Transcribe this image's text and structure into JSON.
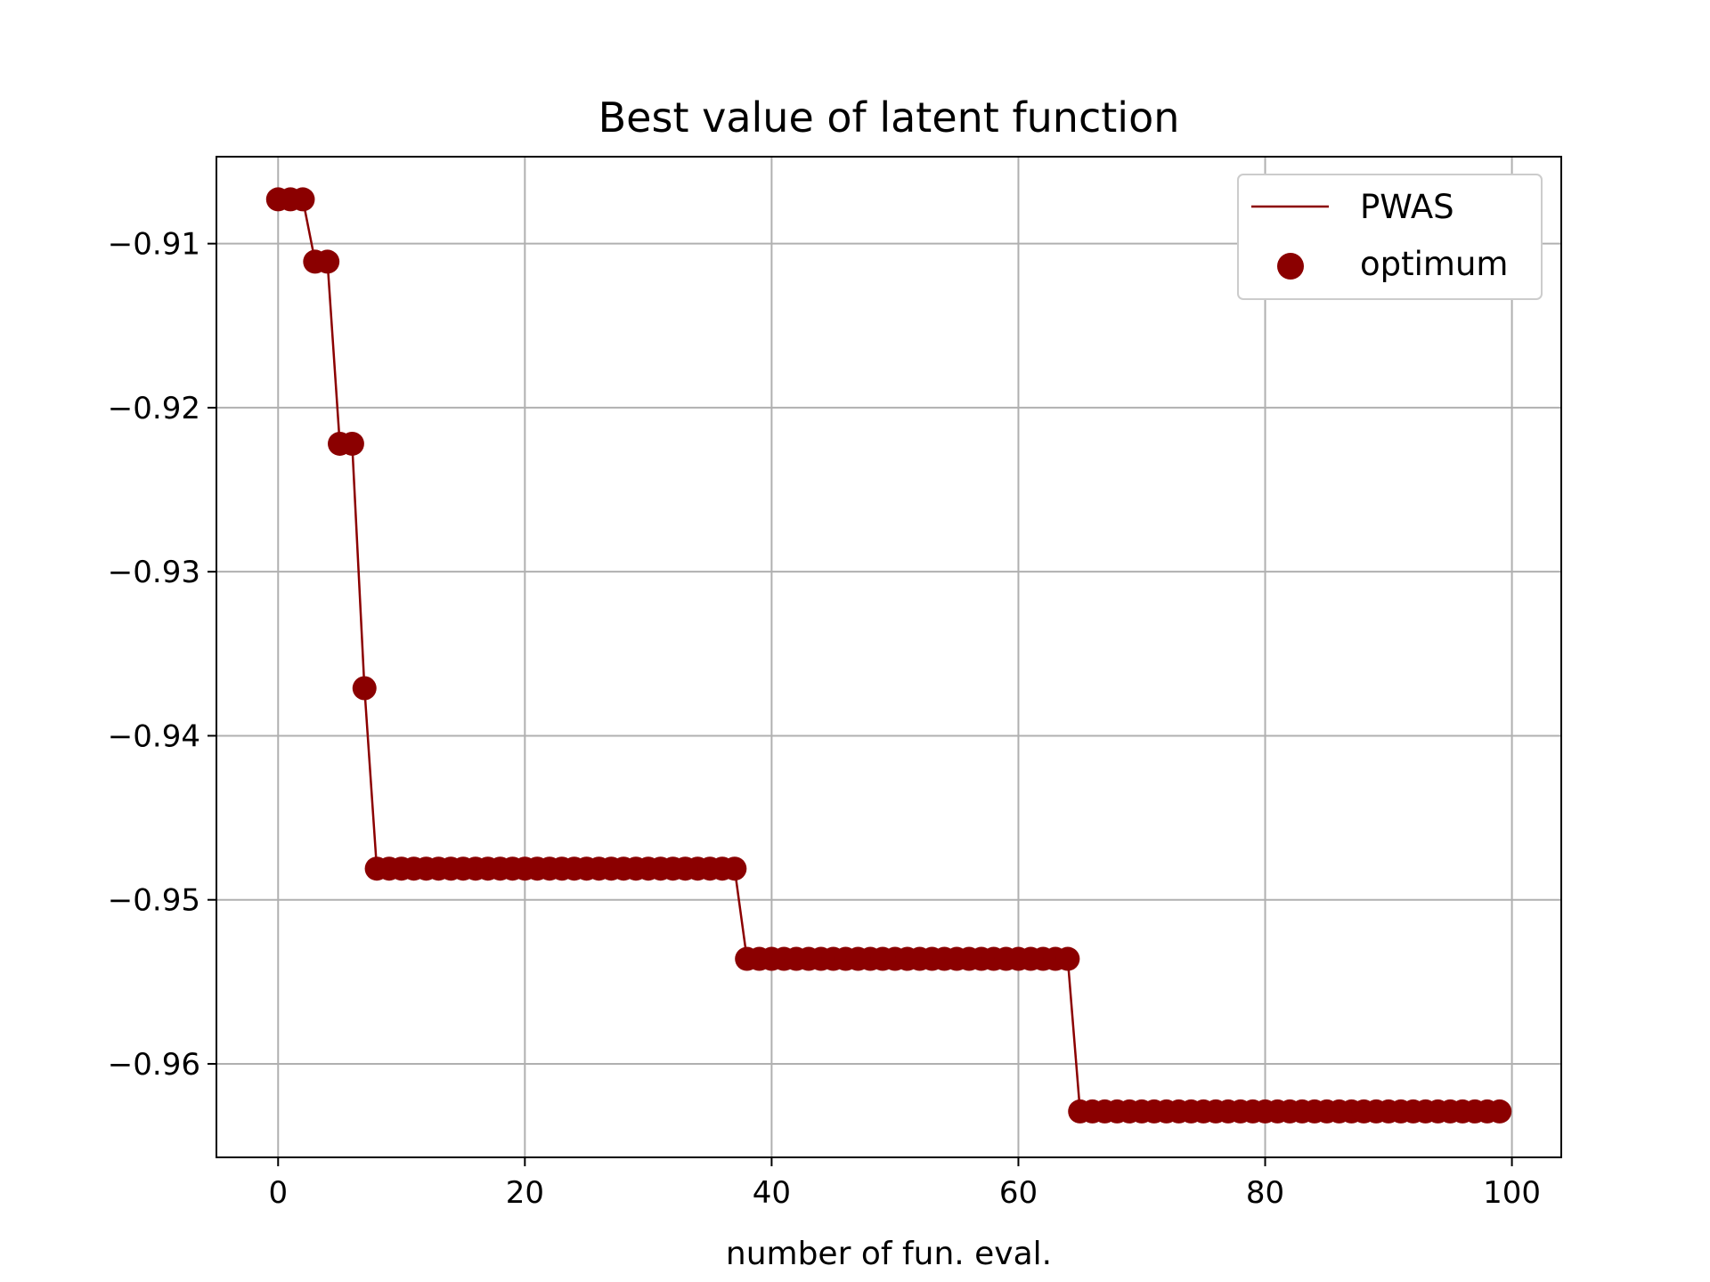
{
  "chart_data": {
    "type": "line",
    "title": "Best value of latent function",
    "xlabel": "number of fun. eval.",
    "ylabel": "",
    "xlim": [
      -5,
      104
    ],
    "ylim": [
      -0.9657,
      -0.9047
    ],
    "xticks": [
      0,
      20,
      40,
      60,
      80,
      100
    ],
    "xtick_labels": [
      "0",
      "20",
      "40",
      "60",
      "80",
      "100"
    ],
    "yticks": [
      -0.91,
      -0.92,
      -0.93,
      -0.94,
      -0.95,
      -0.96
    ],
    "ytick_labels": [
      "−0.91",
      "−0.92",
      "−0.93",
      "−0.94",
      "−0.95",
      "−0.96"
    ],
    "grid": true,
    "legend_position": "upper-right",
    "colors": {
      "series": "#8b0000",
      "grid": "#b0b0b0",
      "axes": "#000000"
    },
    "series": [
      {
        "name": "PWAS",
        "kind": "line"
      },
      {
        "name": "optimum",
        "kind": "scatter"
      }
    ],
    "segments": [
      {
        "from": 0,
        "to": 2,
        "value": -0.9073
      },
      {
        "from": 3,
        "to": 4,
        "value": -0.9111
      },
      {
        "from": 5,
        "to": 6,
        "value": -0.9222
      },
      {
        "from": 7,
        "to": 7,
        "value": -0.9371
      },
      {
        "from": 8,
        "to": 37,
        "value": -0.9481
      },
      {
        "from": 38,
        "to": 64,
        "value": -0.9536
      },
      {
        "from": 65,
        "to": 99,
        "value": -0.9629
      }
    ]
  }
}
